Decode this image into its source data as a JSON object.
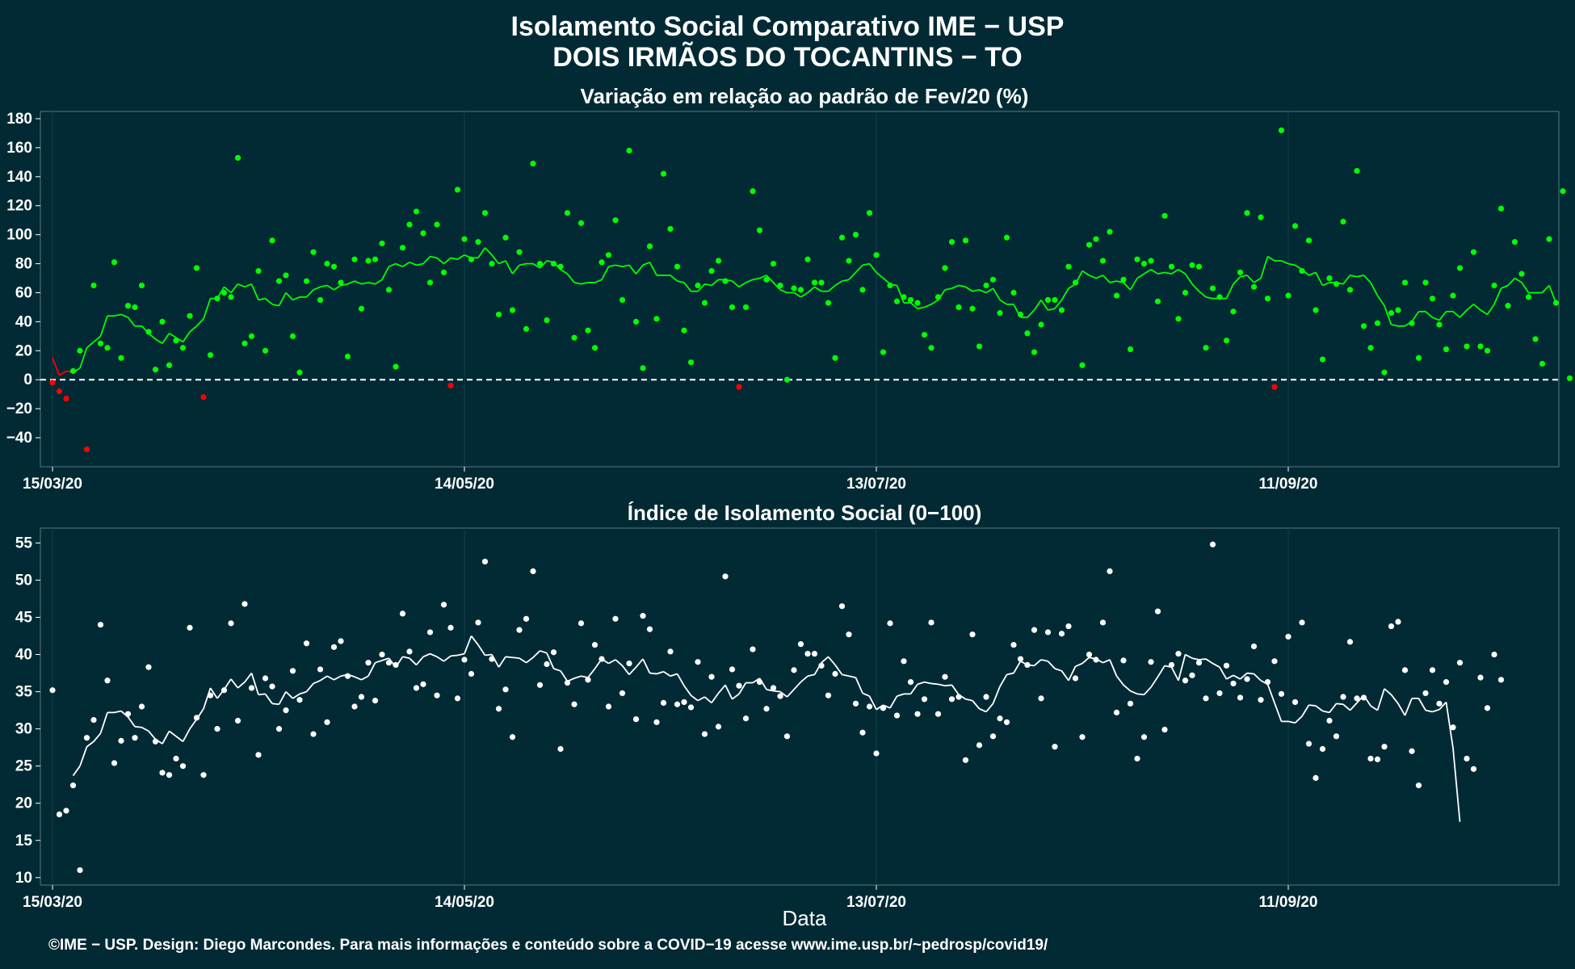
{
  "header": {
    "title_line1": "Isolamento Social Comparativo IME − USP",
    "title_line2": "DOIS IRMÃOS DO TOCANTINS − TO"
  },
  "xlabel": "Data",
  "caption": "©IME − USP. Design: Diego Marcondes. Para mais informações e conteúdo sobre a COVID−19 acesse www.ime.usp.br/~pedrosp/covid19/",
  "colors": {
    "background": "#022a35",
    "positive": "#00ff00",
    "negative": "#ff0000",
    "index": "#ffffff",
    "zero_line": "#ffffff"
  },
  "chart_data": [
    {
      "type": "scatter",
      "title": "Variação em relação ao padrão de Fev/20 (%)",
      "xlim": [
        "15/03/20",
        "28/10/20"
      ],
      "x_ticks": [
        "15/03/20",
        "14/05/20",
        "13/07/20",
        "11/09/20"
      ],
      "ylim": [
        -60,
        185
      ],
      "y_ticks": [
        -40,
        -20,
        0,
        20,
        40,
        60,
        80,
        100,
        120,
        140,
        160,
        180
      ],
      "reference_line": 0,
      "series": [
        {
          "values": [
            -2,
            -8,
            -13,
            6,
            20,
            -48,
            65,
            25,
            22,
            81,
            15,
            51,
            50,
            65,
            33,
            7,
            40,
            10,
            27,
            22,
            44,
            77,
            -12,
            17,
            56,
            60,
            57,
            153,
            25,
            30,
            75,
            20,
            96,
            68,
            72,
            30,
            5,
            68,
            88,
            55,
            80,
            78,
            67,
            16,
            83,
            49,
            82,
            83,
            94,
            62,
            9,
            91,
            107,
            116,
            101,
            67,
            107,
            74,
            -4,
            131,
            97,
            83,
            95,
            115,
            80,
            45,
            98,
            48,
            88,
            35,
            149,
            80,
            41,
            80,
            78,
            115,
            29,
            108,
            34,
            22,
            81,
            86,
            110,
            55,
            158,
            40,
            8,
            92,
            42,
            142,
            104,
            78,
            34,
            12,
            65,
            53,
            75,
            82,
            68,
            50,
            -5,
            50,
            130,
            103,
            69,
            80,
            65,
            0,
            63,
            62,
            83,
            67,
            67,
            53,
            15,
            98,
            82,
            100,
            62,
            115,
            86,
            19,
            65,
            54,
            57,
            55,
            53,
            31,
            22,
            57,
            77,
            95,
            50,
            96,
            49,
            23,
            65,
            69,
            46,
            98,
            60,
            45,
            32,
            19,
            38,
            55,
            55,
            48,
            78,
            67,
            10,
            93,
            97,
            82,
            102,
            58,
            69,
            21,
            83,
            80,
            82,
            54,
            113,
            78,
            42,
            60,
            79,
            78,
            22,
            63,
            57,
            27,
            47,
            74,
            115,
            64,
            112,
            56,
            -5,
            172,
            58,
            106,
            75,
            96,
            48,
            14,
            70,
            66,
            109,
            62,
            144,
            37,
            22,
            39,
            5,
            46,
            48,
            67,
            39,
            15,
            67,
            56,
            38,
            21,
            58,
            77,
            23,
            88,
            23,
            20,
            65,
            118,
            51,
            95,
            73,
            57,
            28,
            11,
            97,
            53,
            130,
            1
          ]
        },
        {
          "name": "média móvel 7 dias",
          "values": [
            15,
            3,
            6,
            5,
            8,
            22,
            26,
            30,
            44,
            44,
            45,
            43,
            37,
            37,
            32,
            28,
            25,
            32,
            29,
            26,
            33,
            37,
            42,
            56,
            56,
            64,
            60,
            66,
            64,
            66,
            55,
            56,
            52,
            51,
            60,
            55,
            57,
            57,
            62,
            64,
            65,
            62,
            65,
            66,
            68,
            66,
            67,
            66,
            69,
            78,
            80,
            78,
            81,
            79,
            80,
            85,
            84,
            80,
            84,
            83,
            86,
            84,
            84,
            91,
            86,
            80,
            82,
            73,
            79,
            80,
            80,
            77,
            82,
            81,
            76,
            73,
            67,
            66,
            67,
            67,
            69,
            78,
            79,
            78,
            79,
            73,
            79,
            81,
            72,
            72,
            72,
            68,
            67,
            61,
            61,
            66,
            65,
            69,
            69,
            68,
            64,
            67,
            69,
            70,
            72,
            67,
            62,
            60,
            60,
            57,
            60,
            64,
            61,
            61,
            65,
            68,
            69,
            74,
            79,
            80,
            74,
            70,
            66,
            65,
            53,
            53,
            49,
            50,
            52,
            55,
            62,
            63,
            65,
            64,
            61,
            62,
            60,
            63,
            55,
            52,
            52,
            43,
            43,
            48,
            55,
            48,
            49,
            55,
            63,
            66,
            75,
            72,
            70,
            72,
            67,
            68,
            67,
            62,
            70,
            73,
            76,
            73,
            74,
            73,
            76,
            73,
            66,
            61,
            57,
            56,
            56,
            56,
            66,
            71,
            72,
            67,
            70,
            85,
            82,
            82,
            80,
            79,
            76,
            72,
            74,
            65,
            67,
            67,
            66,
            72,
            71,
            72,
            67,
            58,
            51,
            38,
            37,
            37,
            40,
            47,
            47,
            43,
            41,
            47,
            47,
            43,
            48,
            52,
            48,
            45,
            52,
            63,
            65,
            70,
            67,
            60,
            60,
            60,
            65,
            53
          ]
        }
      ]
    },
    {
      "type": "scatter",
      "title": "Índice de Isolamento Social (0−100)",
      "xlim": [
        "15/03/20",
        "28/10/20"
      ],
      "x_ticks": [
        "15/03/20",
        "14/05/20",
        "13/07/20",
        "11/09/20"
      ],
      "ylim": [
        9,
        57
      ],
      "y_ticks": [
        10,
        15,
        20,
        25,
        30,
        35,
        40,
        45,
        50,
        55
      ],
      "series": [
        {
          "values": [
            35.2,
            18.5,
            19,
            22.4,
            11,
            28.8,
            31.2,
            44,
            36.5,
            25.4,
            28.4,
            32,
            28.8,
            33,
            38.3,
            28.3,
            24.1,
            23.8,
            26,
            25,
            43.6,
            31.5,
            23.8,
            34.5,
            30,
            35.2,
            44.2,
            31.1,
            46.8,
            35.5,
            26.5,
            36.8,
            35.7,
            30,
            32.5,
            37.8,
            33.9,
            41.5,
            29.3,
            38,
            30.9,
            41,
            41.8,
            37.1,
            33,
            34.3,
            38.9,
            33.8,
            40,
            38.9,
            38.6,
            45.5,
            40.4,
            35.5,
            36,
            43,
            34.5,
            46.7,
            43.6,
            34.1,
            39.3,
            37.4,
            44.3,
            52.5,
            39.4,
            32.7,
            35.3,
            28.9,
            43.3,
            44.8,
            51.2,
            35.9,
            38.7,
            40.3,
            27.3,
            36.2,
            33.3,
            44.2,
            36.6,
            41.3,
            39.4,
            33,
            44.8,
            34.8,
            38.8,
            31.3,
            45.2,
            43.4,
            30.9,
            33.5,
            40.4,
            33.3,
            33.6,
            32.9,
            39,
            29.3,
            37,
            30.3,
            50.5,
            38,
            35.8,
            31.4,
            40.7,
            36.3,
            32.7,
            35.5,
            34.4,
            29,
            37.9,
            41.4,
            40.1,
            40.1,
            38.5,
            34.5,
            37.4,
            46.5,
            42.7,
            33.4,
            29.5,
            33,
            26.7,
            32.8,
            44.2,
            31.8,
            39.1,
            36.3,
            32,
            34,
            44.3,
            32,
            37,
            34,
            34.3,
            25.8,
            42.7,
            27.8,
            34.3,
            29,
            31.4,
            30.9,
            41.3,
            39.4,
            38.6,
            43.3,
            34.1,
            43,
            27.6,
            42.8,
            43.8,
            36.8,
            28.9,
            40,
            39.3,
            44.3,
            51.2,
            32.2,
            39.2,
            33.4,
            26,
            28.9,
            39,
            45.8,
            29.9,
            38.6,
            40.1,
            36.5,
            37.2,
            38.9,
            34.1,
            54.8,
            34.8,
            38.5,
            36.1,
            34.2,
            36.7,
            41.1,
            33.9,
            36.3,
            39.1,
            34.7,
            42.4,
            33.6,
            44.3,
            28,
            23.4,
            27.3,
            31.1,
            29,
            34.3,
            41.7,
            34.1,
            34.2,
            26,
            25.9,
            27.6,
            43.8,
            44.4,
            37.9,
            27,
            22.4,
            34.8,
            37.9,
            33.4,
            36.3,
            30.2,
            38.9,
            26,
            24.6,
            36.9,
            32.8,
            40,
            36.6
          ]
        },
        {
          "name": "média móvel 7 dias",
          "values": [
            null,
            null,
            null,
            23.7,
            25,
            27.6,
            28.3,
            29.4,
            32.2,
            32.2,
            32.4,
            31.6,
            30.3,
            30.2,
            29.7,
            28.6,
            28,
            29.7,
            29,
            28.3,
            30,
            31.3,
            32.7,
            35.5,
            34.1,
            35.3,
            36.7,
            35.5,
            36.3,
            37.5,
            34.6,
            34.7,
            33.4,
            33.3,
            35,
            34.1,
            34.7,
            35,
            36.1,
            36.5,
            37.1,
            36.6,
            37.1,
            37.3,
            37,
            36.6,
            37.1,
            38.9,
            39.2,
            39.5,
            38.3,
            39.7,
            39.5,
            38.6,
            39.7,
            40.1,
            39.7,
            39.1,
            39.8,
            39.9,
            40.1,
            42.5,
            41.3,
            39.9,
            40,
            38.3,
            39.7,
            39.6,
            39.5,
            38.9,
            39.6,
            40.5,
            40.2,
            38.1,
            37.8,
            36.4,
            36.8,
            37.1,
            36.9,
            38.1,
            39.4,
            38.8,
            39.3,
            38.5,
            37.3,
            38.3,
            39.4,
            37.5,
            37.4,
            37.7,
            37.1,
            37.4,
            35.8,
            34.5,
            33.8,
            34.3,
            33.5,
            34.8,
            35.9,
            34,
            34.7,
            36.2,
            36.2,
            36.8,
            35.3,
            35.1,
            35,
            34.3,
            35.3,
            36.3,
            37.1,
            37.3,
            38.9,
            39.7,
            38.6,
            37.3,
            37.1,
            36.9,
            34.8,
            34.4,
            32.6,
            33.2,
            32.8,
            34.4,
            34.7,
            34.7,
            36,
            36.3,
            36.1,
            36,
            35.8,
            35.9,
            34.6,
            34,
            33.8,
            32.7,
            32.3,
            33.4,
            35.7,
            37.3,
            37.5,
            39.1,
            38.6,
            38.5,
            39.3,
            39.1,
            38.1,
            37.8,
            36.5,
            38.4,
            38.8,
            39.6,
            39.4,
            38.9,
            39.3,
            37.1,
            35.9,
            35.1,
            34.7,
            34.6,
            35.6,
            37,
            38.5,
            38.3,
            36.5,
            40,
            39.5,
            39.3,
            39.4,
            38.8,
            38.3,
            36.7,
            37.2,
            36.7,
            37.5,
            37.4,
            36.5,
            36,
            33.5,
            31,
            31,
            30.8,
            31.7,
            33.2,
            33.1,
            32.4,
            32.2,
            33.4,
            33.3,
            32.5,
            33.5,
            34.5,
            33.1,
            32.5,
            35.4,
            34.6,
            33.4,
            31.8,
            34.1,
            34.1,
            32.5,
            32.3,
            32.6,
            33.6,
            27.4,
            17.5
          ]
        }
      ]
    }
  ]
}
